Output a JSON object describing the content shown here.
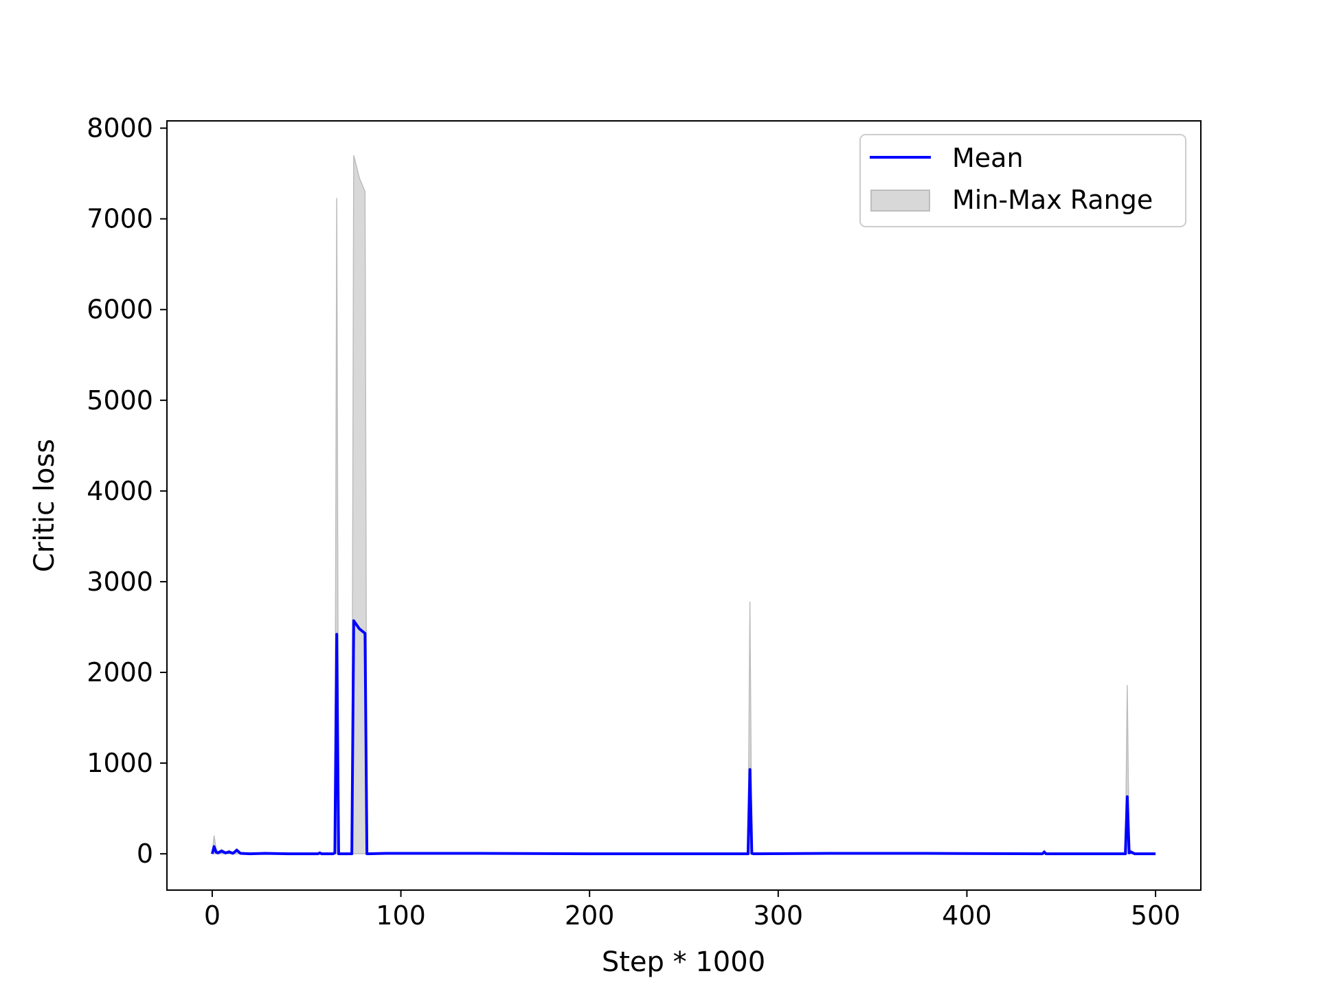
{
  "chart_data": {
    "type": "line",
    "title": "",
    "xlabel": "Step * 1000",
    "ylabel": "Critic loss",
    "xlim": [
      -24,
      524
    ],
    "ylim": [
      -400,
      8080
    ],
    "xticks": [
      0,
      100,
      200,
      300,
      400,
      500
    ],
    "yticks": [
      0,
      1000,
      2000,
      3000,
      4000,
      5000,
      6000,
      7000,
      8000
    ],
    "grid": false,
    "legend_position": "top-right",
    "colors": {
      "mean": "#0000ff",
      "range_fill": "#d8d8d8",
      "range_edge": "#bdbdbd"
    },
    "series": [
      {
        "name": "Mean",
        "kind": "line",
        "x": [
          0,
          1,
          2,
          3,
          5,
          7,
          9,
          11,
          13,
          15,
          20,
          28,
          40,
          56,
          57,
          58,
          64,
          65,
          66,
          67,
          74,
          75,
          78,
          81,
          82,
          83,
          92,
          115,
          141,
          200,
          250,
          284,
          285,
          286,
          287,
          327,
          378,
          440,
          441,
          442,
          484,
          485,
          486,
          487,
          489,
          500
        ],
        "y": [
          0,
          80,
          20,
          10,
          30,
          10,
          20,
          5,
          40,
          5,
          0,
          5,
          0,
          0,
          10,
          0,
          0,
          10,
          2420,
          0,
          0,
          2570,
          2480,
          2430,
          0,
          0,
          5,
          5,
          5,
          0,
          0,
          0,
          930,
          5,
          0,
          5,
          5,
          0,
          20,
          0,
          0,
          630,
          10,
          20,
          0,
          0
        ]
      },
      {
        "name": "Min-Max Range",
        "kind": "band",
        "x": [
          0,
          1,
          2,
          3,
          5,
          7,
          9,
          11,
          13,
          15,
          20,
          28,
          40,
          56,
          57,
          58,
          64,
          65,
          66,
          67,
          74,
          75,
          78,
          81,
          82,
          83,
          92,
          115,
          141,
          200,
          250,
          284,
          285,
          286,
          287,
          327,
          378,
          440,
          441,
          442,
          484,
          485,
          486,
          487,
          489,
          500
        ],
        "ymin": [
          0,
          0,
          0,
          0,
          0,
          0,
          0,
          0,
          0,
          0,
          0,
          0,
          0,
          0,
          0,
          0,
          0,
          0,
          0,
          0,
          0,
          0,
          0,
          0,
          0,
          0,
          0,
          0,
          0,
          0,
          0,
          0,
          0,
          0,
          0,
          0,
          0,
          0,
          0,
          0,
          0,
          0,
          0,
          0,
          0,
          0
        ],
        "ymax": [
          0,
          200,
          60,
          20,
          50,
          20,
          40,
          10,
          60,
          10,
          0,
          10,
          0,
          0,
          20,
          0,
          0,
          20,
          7230,
          0,
          0,
          7700,
          7450,
          7300,
          0,
          0,
          10,
          10,
          10,
          0,
          0,
          0,
          2780,
          10,
          0,
          10,
          10,
          0,
          40,
          0,
          0,
          1860,
          20,
          40,
          0,
          0
        ]
      }
    ]
  }
}
